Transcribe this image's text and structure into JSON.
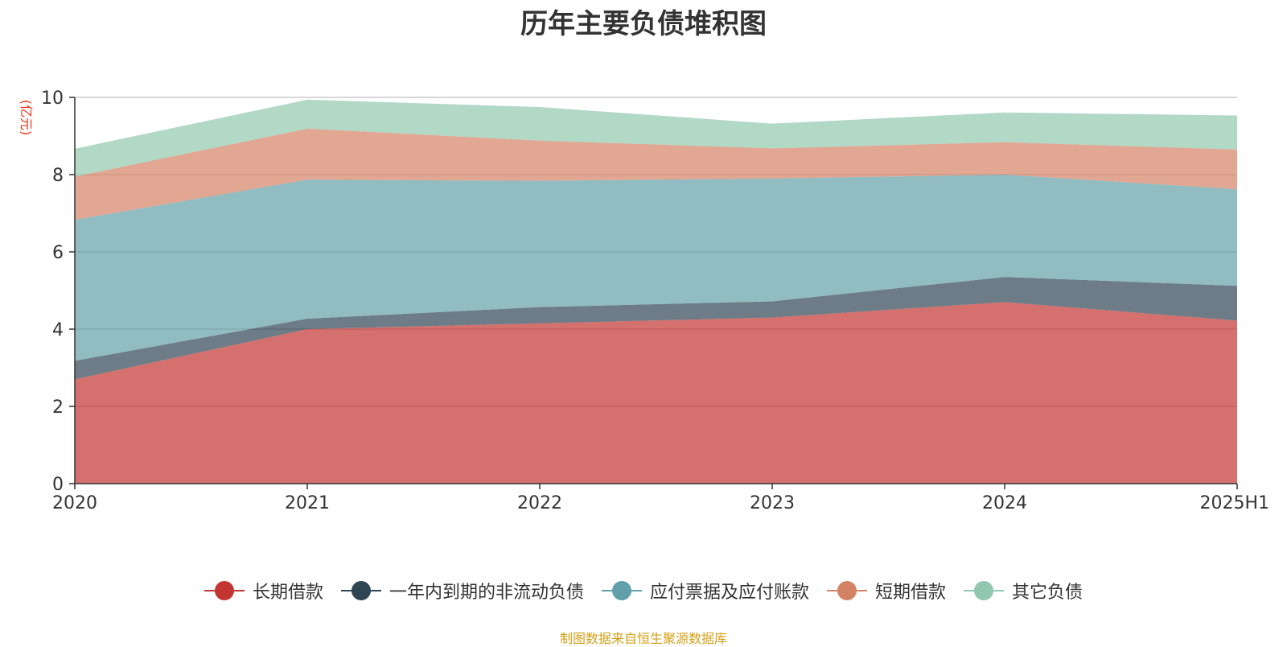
{
  "chart_data": {
    "type": "area",
    "stacked": true,
    "title": "历年主要负债堆积图",
    "unit_label": "(亿元)",
    "x": [
      "2020",
      "2021",
      "2022",
      "2023",
      "2024",
      "2025H1"
    ],
    "ylim": [
      0,
      10
    ],
    "yticks": [
      0,
      2,
      4,
      6,
      8,
      10
    ],
    "grid": true,
    "legend_position": "bottom",
    "series": [
      {
        "name": "长期借款",
        "color": "#c23531",
        "values": [
          2.7,
          4.0,
          4.15,
          4.3,
          4.7,
          4.22
        ]
      },
      {
        "name": "一年内到期的非流动负债",
        "color": "#2f4554",
        "values": [
          0.48,
          0.27,
          0.42,
          0.42,
          0.65,
          0.9
        ]
      },
      {
        "name": "应付票据及应付账款",
        "color": "#61a0a8",
        "values": [
          3.65,
          3.6,
          3.27,
          3.18,
          2.65,
          2.5
        ]
      },
      {
        "name": "短期借款",
        "color": "#d48265",
        "values": [
          1.12,
          1.32,
          1.04,
          0.78,
          0.84,
          1.03
        ]
      },
      {
        "name": "其它负债",
        "color": "#91c7ae",
        "values": [
          0.72,
          0.75,
          0.87,
          0.64,
          0.77,
          0.88
        ]
      }
    ]
  },
  "source_note": "制图数据来自恒生聚源数据库"
}
